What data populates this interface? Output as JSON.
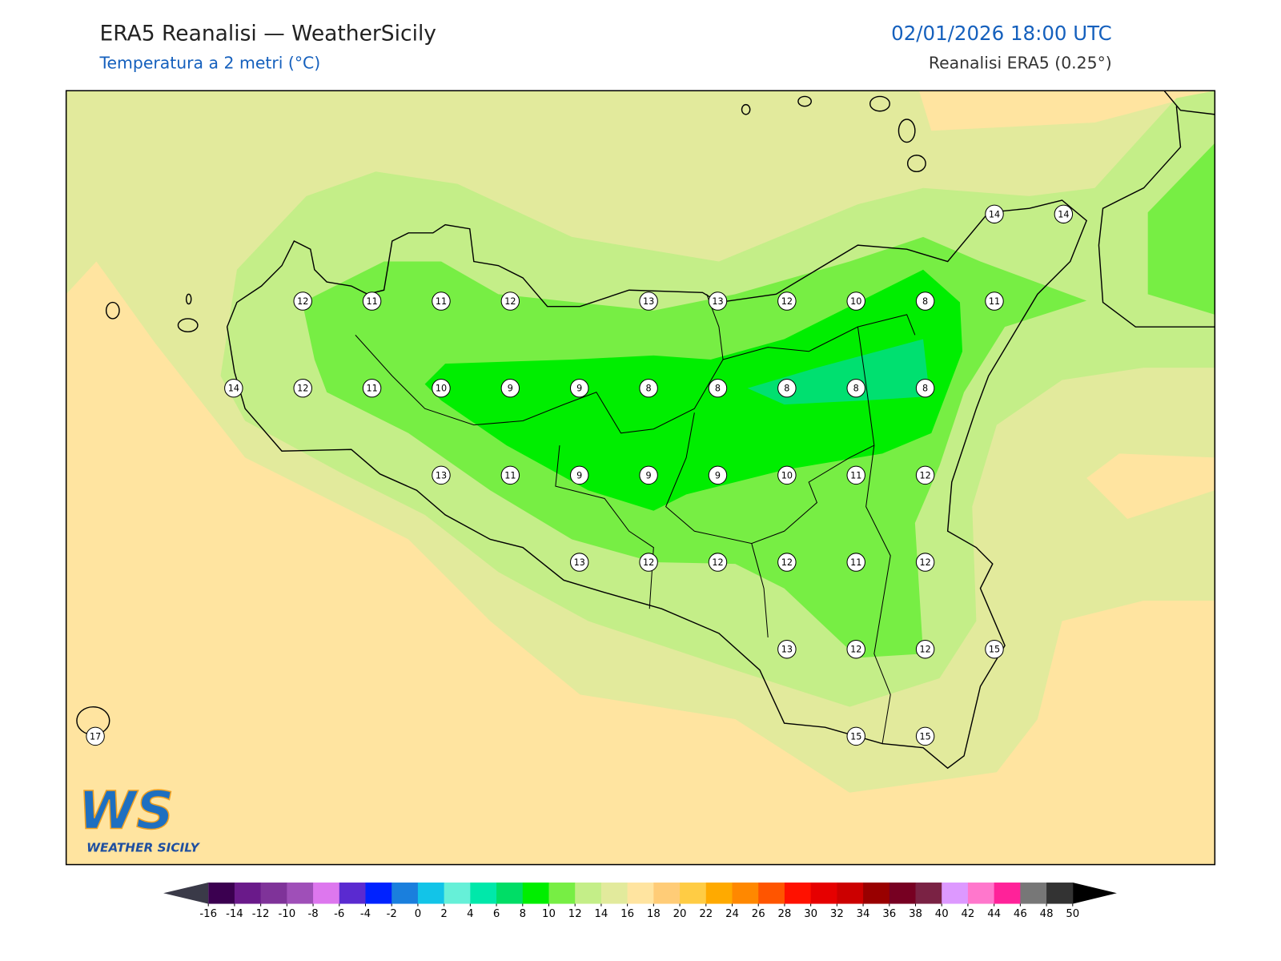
{
  "header": {
    "title": "ERA5 Reanalisi — WeatherSicily",
    "subtitle": "Temperatura a 2 metri (°C)",
    "datetime": "02/01/2026 18:00 UTC",
    "source": "Reanalisi ERA5 (0.25°)"
  },
  "stations": [
    14,
    14,
    12,
    11,
    11,
    12,
    13,
    13,
    12,
    10,
    8,
    11,
    14,
    12,
    11,
    10,
    9,
    9,
    8,
    8,
    8,
    8,
    8,
    13,
    11,
    9,
    9,
    9,
    10,
    11,
    12,
    13,
    12,
    12,
    12,
    11,
    12,
    13,
    12,
    12,
    15,
    15,
    15,
    17
  ],
  "logo": {
    "mark": "WS",
    "name": "WEATHER SICILY"
  },
  "colorbar": {
    "ticks": [
      -16,
      -14,
      -12,
      -10,
      -8,
      -6,
      -4,
      -2,
      0,
      2,
      4,
      6,
      8,
      10,
      12,
      14,
      16,
      18,
      20,
      22,
      24,
      26,
      28,
      30,
      32,
      34,
      36,
      38,
      40,
      42,
      44,
      46,
      48,
      50
    ],
    "colors": [
      "#3b0050",
      "#6a1a8a",
      "#7f3399",
      "#9f4fb8",
      "#dd77ee",
      "#5a2ad0",
      "#0022ff",
      "#1a7fdd",
      "#12c4e8",
      "#66f0d8",
      "#00e8aa",
      "#00dd66",
      "#00ee00",
      "#77ee44",
      "#c4ee88",
      "#e2ea9c",
      "#ffe4a0",
      "#ffcc77",
      "#ffcc44",
      "#ffaa00",
      "#ff8800",
      "#ff5500",
      "#ff1100",
      "#e60000",
      "#cc0000",
      "#990000",
      "#770022",
      "#7a2244",
      "#dd99ff",
      "#ff77cc",
      "#ff2299",
      "#777777",
      "#333333"
    ],
    "under_color": "#3a3a48",
    "over_color": "#000000"
  }
}
